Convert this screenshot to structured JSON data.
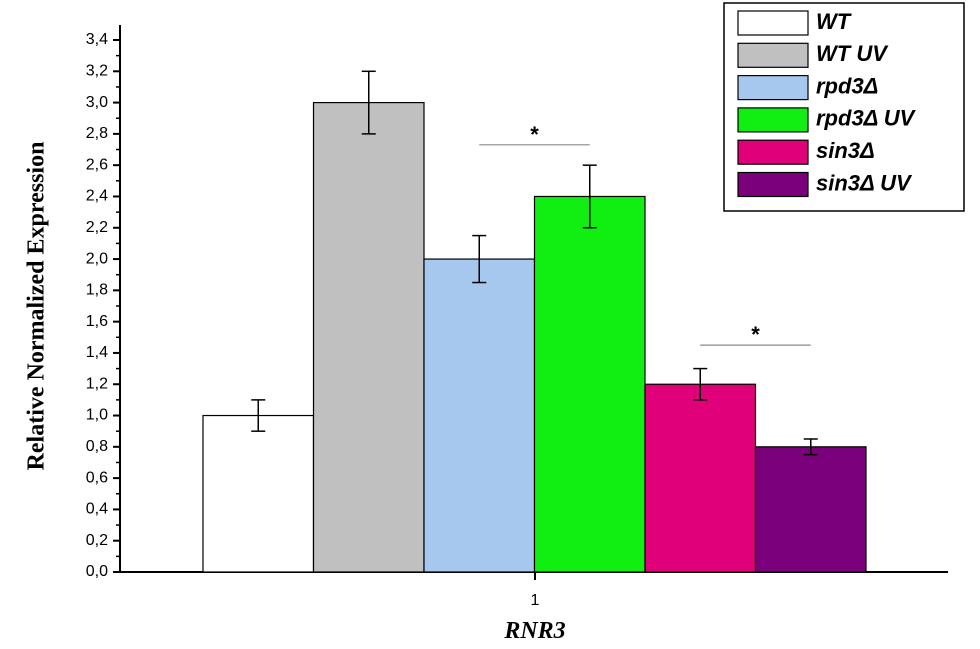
{
  "chart_data": {
    "type": "bar",
    "title": "",
    "xlabel": "RNR3",
    "ylabel": "Relative Normalized Expression",
    "categories": [
      "1"
    ],
    "ylim": [
      0,
      3.4
    ],
    "yticks": [
      "0,0",
      "0,2",
      "0,4",
      "0,6",
      "0,8",
      "1,0",
      "1,2",
      "1,4",
      "1,6",
      "1,8",
      "2,0",
      "2,2",
      "2,4",
      "2,6",
      "2,8",
      "3,0",
      "3,2",
      "3,4"
    ],
    "legend_position": "top-right",
    "series": [
      {
        "name": "WT",
        "values": [
          1.0
        ],
        "error": [
          0.1
        ],
        "color": "#ffffff"
      },
      {
        "name": "WT UV",
        "values": [
          3.0
        ],
        "error": [
          0.2
        ],
        "color": "#c0c0c0"
      },
      {
        "name": "rpd3Δ",
        "values": [
          2.0
        ],
        "error": [
          0.15
        ],
        "color": "#a6c8ee"
      },
      {
        "name": "rpd3Δ UV",
        "values": [
          2.4
        ],
        "error": [
          0.2
        ],
        "color": "#11ee11"
      },
      {
        "name": "sin3Δ",
        "values": [
          1.2
        ],
        "error": [
          0.1
        ],
        "color": "#e0007a"
      },
      {
        "name": "sin3Δ UV",
        "values": [
          0.8
        ],
        "error": [
          0.05
        ],
        "color": "#7b007b"
      }
    ],
    "annotations": [
      {
        "text": "*",
        "between": [
          "rpd3Δ",
          "rpd3Δ UV"
        ],
        "y": 2.73
      },
      {
        "text": "*",
        "between": [
          "sin3Δ",
          "sin3Δ UV"
        ],
        "y": 1.45
      }
    ]
  }
}
